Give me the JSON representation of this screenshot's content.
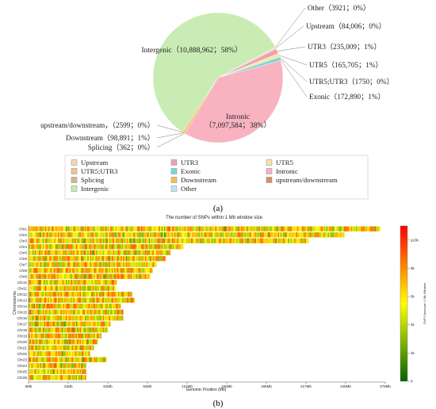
{
  "panel_a": {
    "label": "(a)",
    "chart_data": {
      "type": "pie",
      "slices": [
        {
          "name": "Upstream",
          "label": "Upstream（84,006；0%）",
          "value": 84006,
          "color": "#f6d7bc"
        },
        {
          "name": "UTR3",
          "label": "UTR3（235,009；1%）",
          "value": 235009,
          "color": "#e9a3b2"
        },
        {
          "name": "UTR5",
          "label": "UTR5（165,705；1%）",
          "value": 165705,
          "color": "#f9e4a6"
        },
        {
          "name": "UTR5;UTR3",
          "label": "UTR5;UTR3（1750；0%）",
          "value": 1750,
          "color": "#f2c38a"
        },
        {
          "name": "Exonic",
          "label": "Exonic（172,890；1%）",
          "value": 172890,
          "color": "#7fd6d6"
        },
        {
          "name": "Intronic",
          "label": "Intronic（7,097,584；38%）",
          "value": 7097584,
          "color": "#f9b3c0"
        },
        {
          "name": "Splicing",
          "label": "Splicing（362；0%）",
          "value": 362,
          "color": "#d9b38c"
        },
        {
          "name": "Downstream",
          "label": "Downstream（98,891；1%）",
          "value": 98891,
          "color": "#f2c14e"
        },
        {
          "name": "upstream/downstream",
          "label": "upstream/downstream，（2599；0%）",
          "value": 2599,
          "color": "#d98c6b"
        },
        {
          "name": "Intergenic",
          "label": "Intergenic（10,888,962；58%）",
          "value": 10888962,
          "color": "#c8ecb4"
        },
        {
          "name": "Other",
          "label": "Other（3921；0%）",
          "value": 3921,
          "color": "#b9e8ee"
        }
      ],
      "legend": [
        "Upstream",
        "UTR3",
        "UTR5",
        "UTR5;UTR3",
        "Exonic",
        "Intronic",
        "Splicing",
        "Downstream",
        "upstream/downstream",
        "Intergenic",
        "Other"
      ],
      "legend_placement": "bottom"
    }
  },
  "panel_b": {
    "label": "(b)",
    "chart_data": {
      "type": "heatmap",
      "title": "The number of SNPs within 1 Mb window size",
      "xlabel": "Genomic Position (Mb)",
      "ylabel": "Chromosome",
      "x_ticks": [
        "0Mb",
        "31Mb",
        "62Mb",
        "93Mb",
        "124Mb",
        "155Mb",
        "186Mb",
        "217Mb",
        "248Mb",
        "279Mb"
      ],
      "x_tick_values": [
        0,
        31,
        62,
        93,
        124,
        155,
        186,
        217,
        248,
        279
      ],
      "xlim": [
        0,
        279
      ],
      "chromosomes": [
        "Chr1",
        "Chr2",
        "Chr3",
        "Chr4",
        "Chr5",
        "Chr6",
        "Chr7",
        "Chr8",
        "Chr9",
        "Chr10",
        "Chr11",
        "Chr12",
        "Chr13",
        "Chr14",
        "Chr15",
        "Chr16",
        "Chr17",
        "Chr18",
        "Chr19",
        "Chr20",
        "Chr21",
        "Chr22",
        "Chr23",
        "Chr24",
        "Chr25",
        "Chr26"
      ],
      "chromosome_lengths_mb": [
        275,
        247,
        219,
        121,
        111,
        107,
        100,
        97,
        95,
        69,
        68,
        81,
        83,
        72,
        74,
        74,
        64,
        62,
        57,
        54,
        51,
        48,
        61,
        45,
        45,
        45
      ],
      "colorbar": {
        "label": "SNP Count per 1 Mb Window",
        "ticks": [
          "0",
          "2k",
          "4k",
          "6k",
          "8k",
          "≥10k"
        ],
        "tick_values": [
          0,
          2000,
          4000,
          6000,
          8000,
          10000
        ],
        "range": [
          0,
          11000
        ],
        "colors": [
          "#006400",
          "#ffff00",
          "#ff0000"
        ]
      }
    }
  }
}
